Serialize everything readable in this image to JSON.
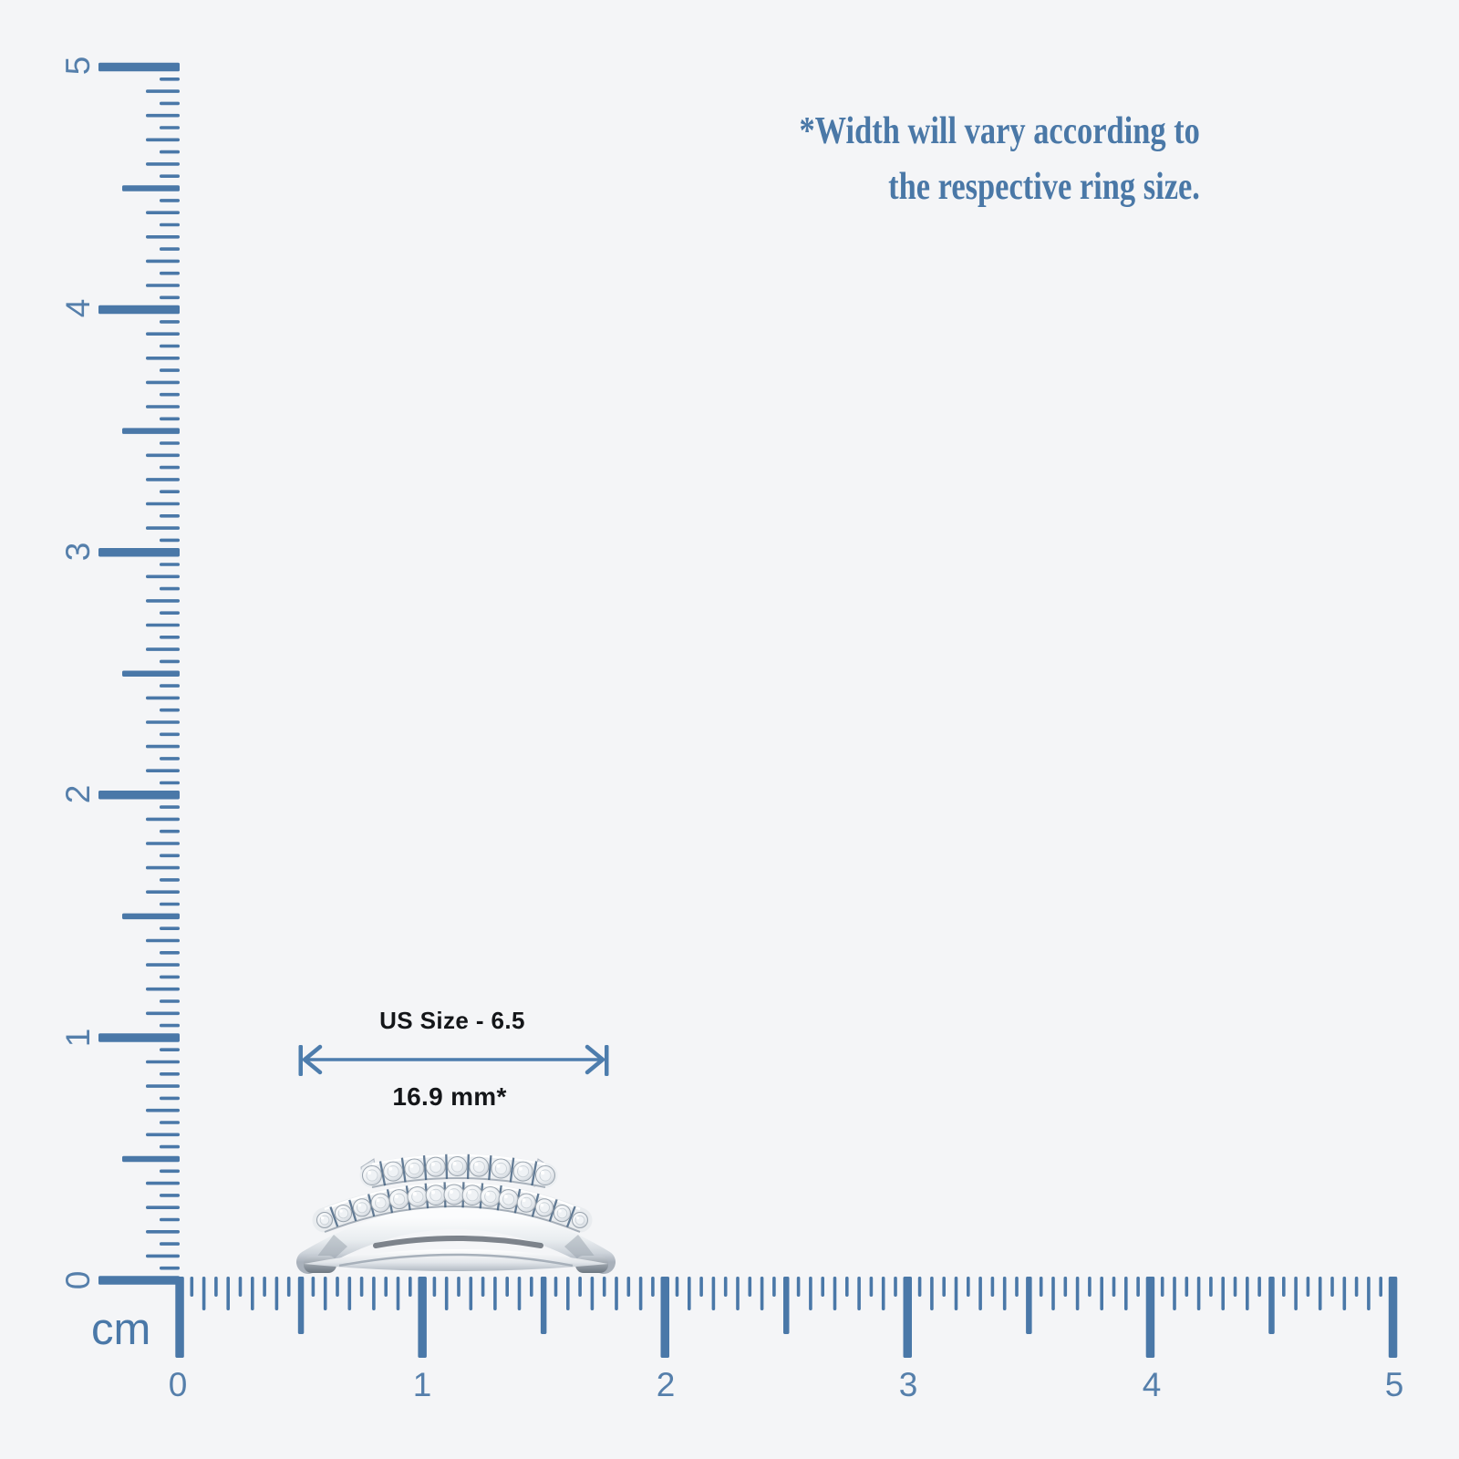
{
  "note": {
    "line1": "*Width will vary according to",
    "line2": "the respective ring size."
  },
  "measurement": {
    "size_label": "US Size - 6.5",
    "width_label": "16.9 mm*"
  },
  "rulers": {
    "unit_label": "cm",
    "horizontal": {
      "numbers": [
        "0",
        "1",
        "2",
        "3",
        "4",
        "5"
      ]
    },
    "vertical": {
      "numbers": [
        "0",
        "1",
        "2",
        "3",
        "4",
        "5"
      ]
    }
  },
  "ring": {
    "description": "diamond-ring-band-top-view",
    "stones_top_row": 9,
    "stones_bottom_row": 15
  },
  "colors": {
    "background": "#f4f5f7",
    "ruler": "#4a78a8",
    "ruler_text": "#557fab",
    "note_text": "#4a78a7",
    "arrow": "#4d7dad",
    "label_text": "#141619"
  }
}
